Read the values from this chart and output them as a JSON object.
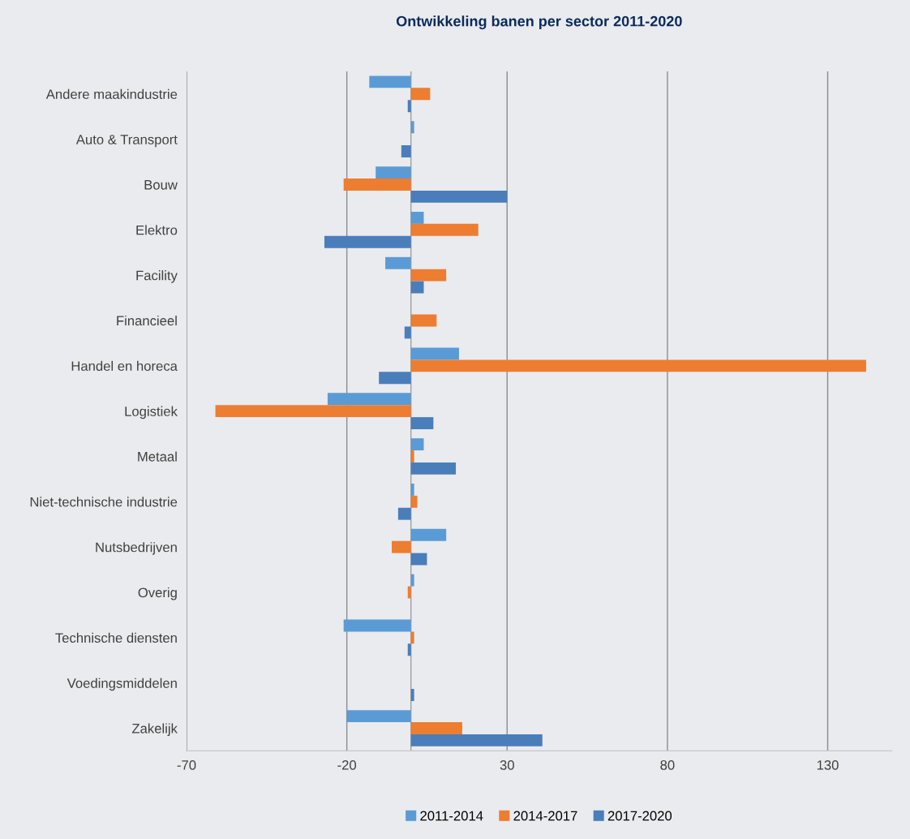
{
  "chart_data": {
    "type": "bar",
    "orientation": "horizontal",
    "title": "Ontwikkeling banen per sector 2011-2020",
    "categories": [
      "Andere maakindustrie",
      "Auto & Transport",
      "Bouw",
      "Elektro",
      "Facility",
      "Financieel",
      "Handel en horeca",
      "Logistiek",
      "Metaal",
      "Niet-technische industrie",
      "Nutsbedrijven",
      "Overig",
      "Technische diensten",
      "Voedingsmiddelen",
      "Zakelijk"
    ],
    "series": [
      {
        "name": "2011-2014",
        "color": "#5b9bd5",
        "values": [
          -13,
          1,
          -11,
          4,
          -8,
          0,
          15,
          -26,
          4,
          1,
          11,
          1,
          -21,
          0,
          -20
        ]
      },
      {
        "name": "2014-2017",
        "color": "#ed7d31",
        "values": [
          6,
          0,
          -21,
          21,
          11,
          8,
          142,
          -61,
          1,
          2,
          -6,
          -1,
          1,
          0,
          16
        ]
      },
      {
        "name": "2017-2020",
        "color": "#4a7ebb",
        "values": [
          -1,
          -3,
          30,
          -27,
          4,
          -2,
          -10,
          7,
          14,
          -4,
          5,
          0,
          -1,
          1,
          41
        ]
      }
    ],
    "xlim": [
      -70,
      150
    ],
    "xticks": [
      -70,
      -20,
      30,
      80,
      130
    ],
    "grid": "x",
    "legend": "bottom"
  }
}
